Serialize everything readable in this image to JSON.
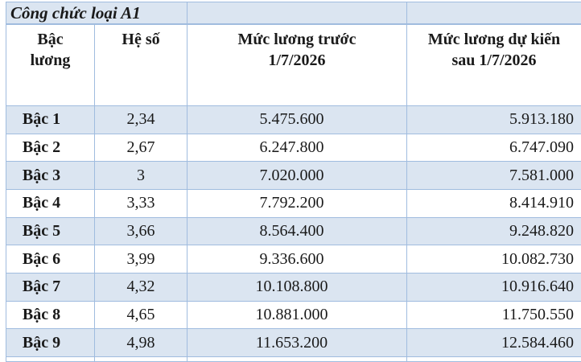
{
  "title": "Công chức loại A1",
  "table": {
    "headers": [
      {
        "lines": [
          "Bậc",
          "lương"
        ]
      },
      {
        "lines": [
          "Hệ số"
        ]
      },
      {
        "lines": [
          "Mức lương trước",
          "1/7/2026"
        ]
      },
      {
        "lines": [
          "Mức lương dự kiến",
          "sau 1/7/2026"
        ]
      }
    ],
    "rows": [
      {
        "grade": "Bậc 1",
        "coefficient": "2,34",
        "salary_before": "5.475.600",
        "salary_after": "5.913.180"
      },
      {
        "grade": "Bậc 2",
        "coefficient": "2,67",
        "salary_before": "6.247.800",
        "salary_after": "6.747.090"
      },
      {
        "grade": "Bậc 3",
        "coefficient": "3",
        "salary_before": "7.020.000",
        "salary_after": "7.581.000"
      },
      {
        "grade": "Bậc 4",
        "coefficient": "3,33",
        "salary_before": "7.792.200",
        "salary_after": "8.414.910"
      },
      {
        "grade": "Bậc 5",
        "coefficient": "3,66",
        "salary_before": "8.564.400",
        "salary_after": "9.248.820"
      },
      {
        "grade": "Bậc 6",
        "coefficient": "3,99",
        "salary_before": "9.336.600",
        "salary_after": "10.082.730"
      },
      {
        "grade": "Bậc 7",
        "coefficient": "4,32",
        "salary_before": "10.108.800",
        "salary_after": "10.916.640"
      },
      {
        "grade": "Bậc 8",
        "coefficient": "4,65",
        "salary_before": "10.881.000",
        "salary_after": "11.750.550"
      },
      {
        "grade": "Bậc 9",
        "coefficient": "4,98",
        "salary_before": "11.653.200",
        "salary_after": "12.584.460"
      }
    ]
  },
  "colors": {
    "row_shade": "#dbe5f1",
    "border": "#a0bcdf",
    "text": "#1a1a1a"
  }
}
